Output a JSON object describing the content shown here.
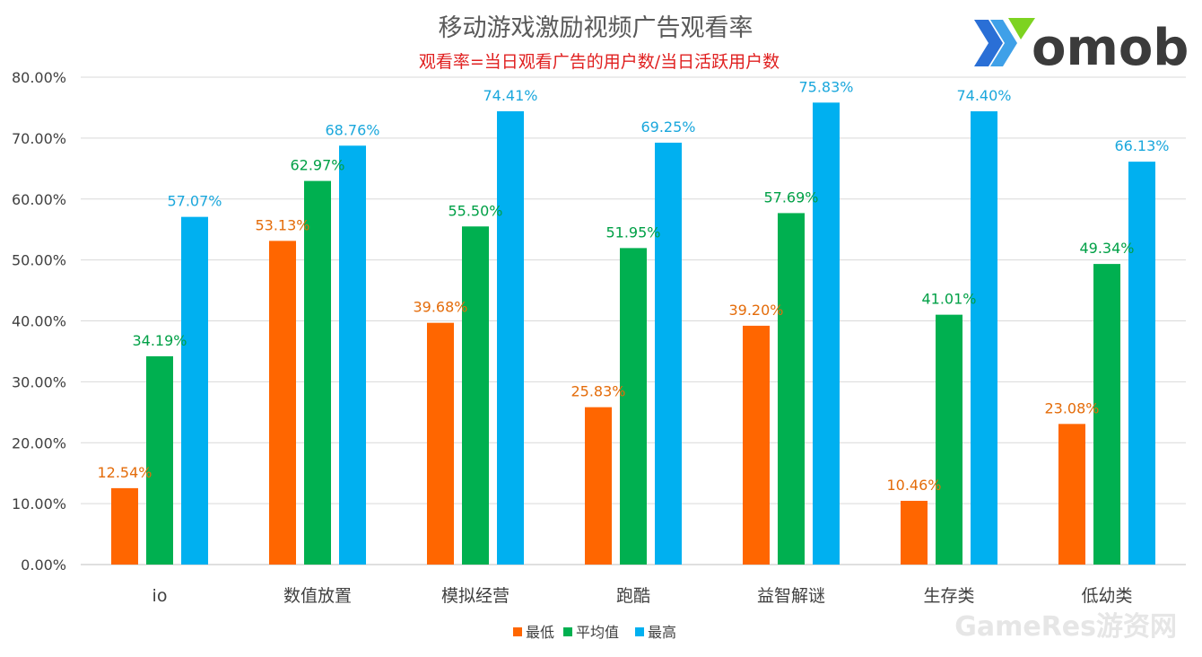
{
  "chart_data": {
    "type": "bar",
    "title": "移动游戏激励视频广告观看率",
    "subtitle": "观看率=当日观看广告的用户数/当日活跃用户数",
    "categories": [
      "io",
      "数值放置",
      "模拟经营",
      "跑酷",
      "益智解谜",
      "生存类",
      "低幼类"
    ],
    "series": [
      {
        "name": "最低",
        "color": "#ff6600",
        "labelColor": "#e46c0a",
        "values": [
          12.54,
          53.13,
          39.68,
          25.83,
          39.2,
          10.46,
          23.08
        ]
      },
      {
        "name": "平均值",
        "color": "#00b050",
        "labelColor": "#00a046",
        "values": [
          34.19,
          62.97,
          55.5,
          51.95,
          57.69,
          41.01,
          49.34
        ]
      },
      {
        "name": "最高",
        "color": "#00b0f0",
        "labelColor": "#1aa7dc",
        "values": [
          57.07,
          68.76,
          74.41,
          69.25,
          75.83,
          74.4,
          66.13
        ]
      }
    ],
    "ylim": [
      0,
      80
    ],
    "yticks": [
      0,
      10,
      20,
      30,
      40,
      50,
      60,
      70,
      80
    ],
    "ytick_labels": [
      "0.00%",
      "10.00%",
      "20.00%",
      "30.00%",
      "40.00%",
      "50.00%",
      "60.00%",
      "70.00%",
      "80.00%"
    ],
    "grid": true,
    "legend_position": "bottom"
  },
  "logo": {
    "text": "omob"
  },
  "watermark": {
    "text": "GameRes游资网"
  }
}
